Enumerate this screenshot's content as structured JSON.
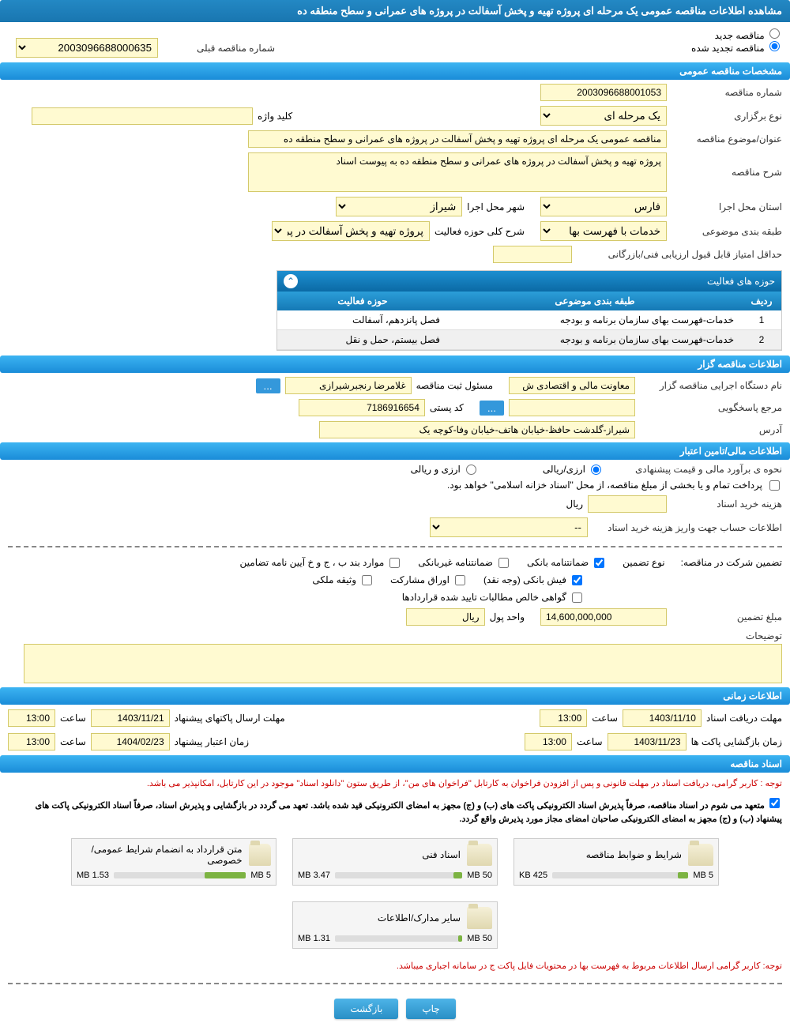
{
  "header": {
    "title": "مشاهده اطلاعات مناقصه عمومی یک مرحله ای پروژه تهیه و پخش آسفالت در پروژه های عمرانی و سطح منطقه ده"
  },
  "radios": {
    "new_tender": "مناقصه جدید",
    "renewed_tender": "مناقصه تجدید شده",
    "prev_number_label": "شماره مناقصه قبلی",
    "prev_number_value": "2003096688000635"
  },
  "section_general": "مشخصات مناقصه عمومی",
  "general": {
    "number_label": "شماره مناقصه",
    "number_value": "2003096688001053",
    "type_label": "نوع برگزاری",
    "type_value": "یک مرحله ای",
    "keyword_label": "کلید واژه",
    "keyword_value": "",
    "subject_label": "عنوان/موضوع مناقصه",
    "subject_value": "مناقصه عمومی یک مرحله ای پروژه تهیه و پخش آسفالت در پروژه های عمرانی و سطح منطقه ده",
    "desc_label": "شرح مناقصه",
    "desc_value": "پروژه تهیه و پخش آسفالت در پروژه های عمرانی و سطح منطقه ده به پیوست اسناد",
    "province_label": "استان محل اجرا",
    "province_value": "فارس",
    "city_label": "شهر محل اجرا",
    "city_value": "شیراز",
    "category_label": "طبقه بندی موضوعی",
    "category_value": "خدمات با فهرست بها",
    "activity_desc_label": "شرح کلی حوزه فعالیت",
    "activity_desc_value": "پروژه تهیه و پخش آسفالت در پروژه های عمرانی و",
    "min_score_label": "حداقل امتیاز قابل قبول ارزیابی فنی/بازرگانی",
    "min_score_value": ""
  },
  "activity_table": {
    "header": "حوزه های فعالیت",
    "col_row": "ردیف",
    "col_category": "طبقه بندی موضوعی",
    "col_field": "حوزه فعالیت",
    "rows": [
      {
        "n": "1",
        "cat": "خدمات-فهرست بهای سازمان برنامه و بودجه",
        "field": "فصل پانزدهم، آسفالت"
      },
      {
        "n": "2",
        "cat": "خدمات-فهرست بهای سازمان برنامه و بودجه",
        "field": "فصل بیستم، حمل و نقل"
      }
    ]
  },
  "section_organizer": "اطلاعات مناقصه گزار",
  "organizer": {
    "exec_label": "نام دستگاه اجرایی مناقصه گزار",
    "exec_value": "معاونت مالی و اقتصادی ش",
    "registrar_label": "مسئول ثبت مناقصه",
    "registrar_value": "غلامرضا رنجبرشیرازی",
    "authority_label": "مرجع پاسخگویی",
    "postal_label": "کد پستی",
    "postal_value": "7186916654",
    "address_label": "آدرس",
    "address_value": "شیراز-گلدشت حافظ-خیابان هاتف-خیابان وفا-کوچه یک"
  },
  "section_financial": "اطلاعات مالی/تامین اعتبار",
  "financial": {
    "estimate_label": "نحوه ی برآورد مالی و قیمت پیشنهادی",
    "opt_rial": "ارزی/ریالی",
    "opt_currency": "ارزی و ریالی",
    "payment_note": "پرداخت تمام و یا بخشی از مبلغ مناقصه، از محل \"اسناد خزانه اسلامی\" خواهد بود.",
    "doc_cost_label": "هزینه خرید اسناد",
    "rial_unit": "ریال",
    "account_info_label": "اطلاعات حساب جهت واریز هزینه خرید اسناد",
    "account_value": "--"
  },
  "guarantee": {
    "title_label": "تضمین شرکت در مناقصه:",
    "type_label": "نوع تضمین",
    "bank_guarantee": "ضمانتنامه بانکی",
    "nonbank_guarantee": "ضمانتنامه غیربانکی",
    "cases_bcdh": "موارد بند ب ، ج و خ آیین نامه تضامین",
    "bank_receipt": "فیش بانکی (وجه نقد)",
    "bonds": "اوراق مشارکت",
    "property": "وثیقه ملکی",
    "net_claims": "گواهی خالص مطالبات تایید شده قراردادها",
    "amount_label": "مبلغ تضمین",
    "amount_value": "14,600,000,000",
    "currency_label": "واحد پول",
    "currency_value": "ریال",
    "notes_label": "توضیحات"
  },
  "section_dates": "اطلاعات زمانی",
  "dates": {
    "receive_label": "مهلت دریافت اسناد",
    "receive_date": "1403/11/10",
    "time_label": "ساعت",
    "receive_time": "13:00",
    "submit_label": "مهلت ارسال پاکتهای پیشنهاد",
    "submit_date": "1403/11/21",
    "submit_time": "13:00",
    "open_label": "زمان بازگشایی پاکت ها",
    "open_date": "1403/11/23",
    "open_time": "13:00",
    "validity_label": "زمان اعتبار پیشنهاد",
    "validity_date": "1404/02/23",
    "validity_time": "13:00"
  },
  "section_docs": "اسناد مناقصه",
  "docs_notes": {
    "note1": "توجه : کاربر گرامی، دریافت اسناد در مهلت قانونی و پس از افزودن فراخوان به کارتابل \"فراخوان های من\"، از طریق ستون \"دانلود اسناد\" موجود در این کارتابل، امکانپذیر می باشد.",
    "note2": "متعهد می شوم در اسناد مناقصه، صرفاً پذیرش اسناد الکترونیکی پاکت های (ب) و (ج) مجهز به امضای الکترونیکی قید شده باشد. تعهد می گردد در بازگشایی و پذیرش اسناد، صرفاً اسناد الکترونیکی پاکت های پیشنهاد (ب) و (ج) مجهز به امضای الکترونیکی صاحبان امضای مجاز مورد پذیرش واقع گردد."
  },
  "docs": [
    {
      "title": "شرایط و ضوابط مناقصه",
      "size": "425 KB",
      "max": "5 MB",
      "pct": 8
    },
    {
      "title": "اسناد فنی",
      "size": "3.47 MB",
      "max": "50 MB",
      "pct": 7
    },
    {
      "title": "متن قرارداد به انضمام شرایط عمومی/خصوصی",
      "size": "1.53 MB",
      "max": "5 MB",
      "pct": 31
    },
    {
      "title": "سایر مدارک/اطلاعات",
      "size": "1.31 MB",
      "max": "50 MB",
      "pct": 3
    }
  ],
  "footer_note": "توجه: کاربر گرامی ارسال اطلاعات مربوط به فهرست بها در محتویات فایل پاکت ج در سامانه اجباری میباشد.",
  "buttons": {
    "print": "چاپ",
    "back": "بازگشت"
  },
  "colors": {
    "section_bg": "#1a8cd8",
    "header_bg": "#1976b0",
    "yellow": "#fffad1",
    "red": "#cc0000"
  }
}
